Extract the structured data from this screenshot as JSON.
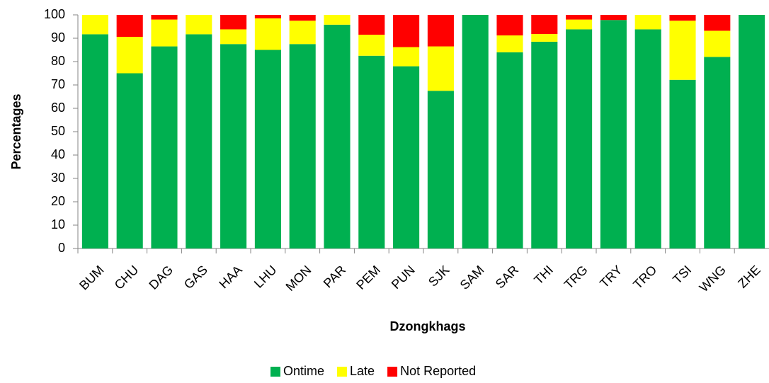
{
  "chart_data": {
    "type": "stacked_bar",
    "x_label": "Dzongkhags",
    "y_label": "Percentages",
    "categories": [
      "BUM",
      "CHU",
      "DAG",
      "GAS",
      "HAA",
      "LHU",
      "MON",
      "PAR",
      "PEM",
      "PUN",
      "SJK",
      "SAM",
      "SAR",
      "THI",
      "TRG",
      "TRY",
      "TRO",
      "TSI",
      "WNG",
      "ZHE"
    ],
    "series": [
      {
        "name": "Ontime",
        "color": "#00b050",
        "values": [
          91.7,
          75,
          86.5,
          91.7,
          87.5,
          85,
          87.5,
          95.8,
          82.5,
          78,
          67.5,
          100,
          84,
          88.5,
          93.8,
          97.8,
          93.8,
          72.2,
          82,
          100
        ]
      },
      {
        "name": "Late",
        "color": "#ffff00",
        "values": [
          8.3,
          15.6,
          11.5,
          8.3,
          6.3,
          13.5,
          10,
          4.2,
          9,
          8.2,
          19,
          0,
          7.2,
          3.3,
          4.2,
          0,
          6.2,
          25.3,
          11.2,
          0
        ]
      },
      {
        "name": "Not Reported",
        "color": "#ff0000",
        "values": [
          0,
          9.4,
          2,
          0,
          6.2,
          1.5,
          2.5,
          0,
          8.5,
          13.8,
          13.5,
          0,
          8.8,
          8.2,
          2,
          2.2,
          0,
          2.5,
          6.8,
          0
        ]
      }
    ],
    "ylim": [
      0,
      100
    ],
    "yticks": [
      0,
      10,
      20,
      30,
      40,
      50,
      60,
      70,
      80,
      90,
      100
    ],
    "grid": false,
    "legend": "bottom"
  }
}
